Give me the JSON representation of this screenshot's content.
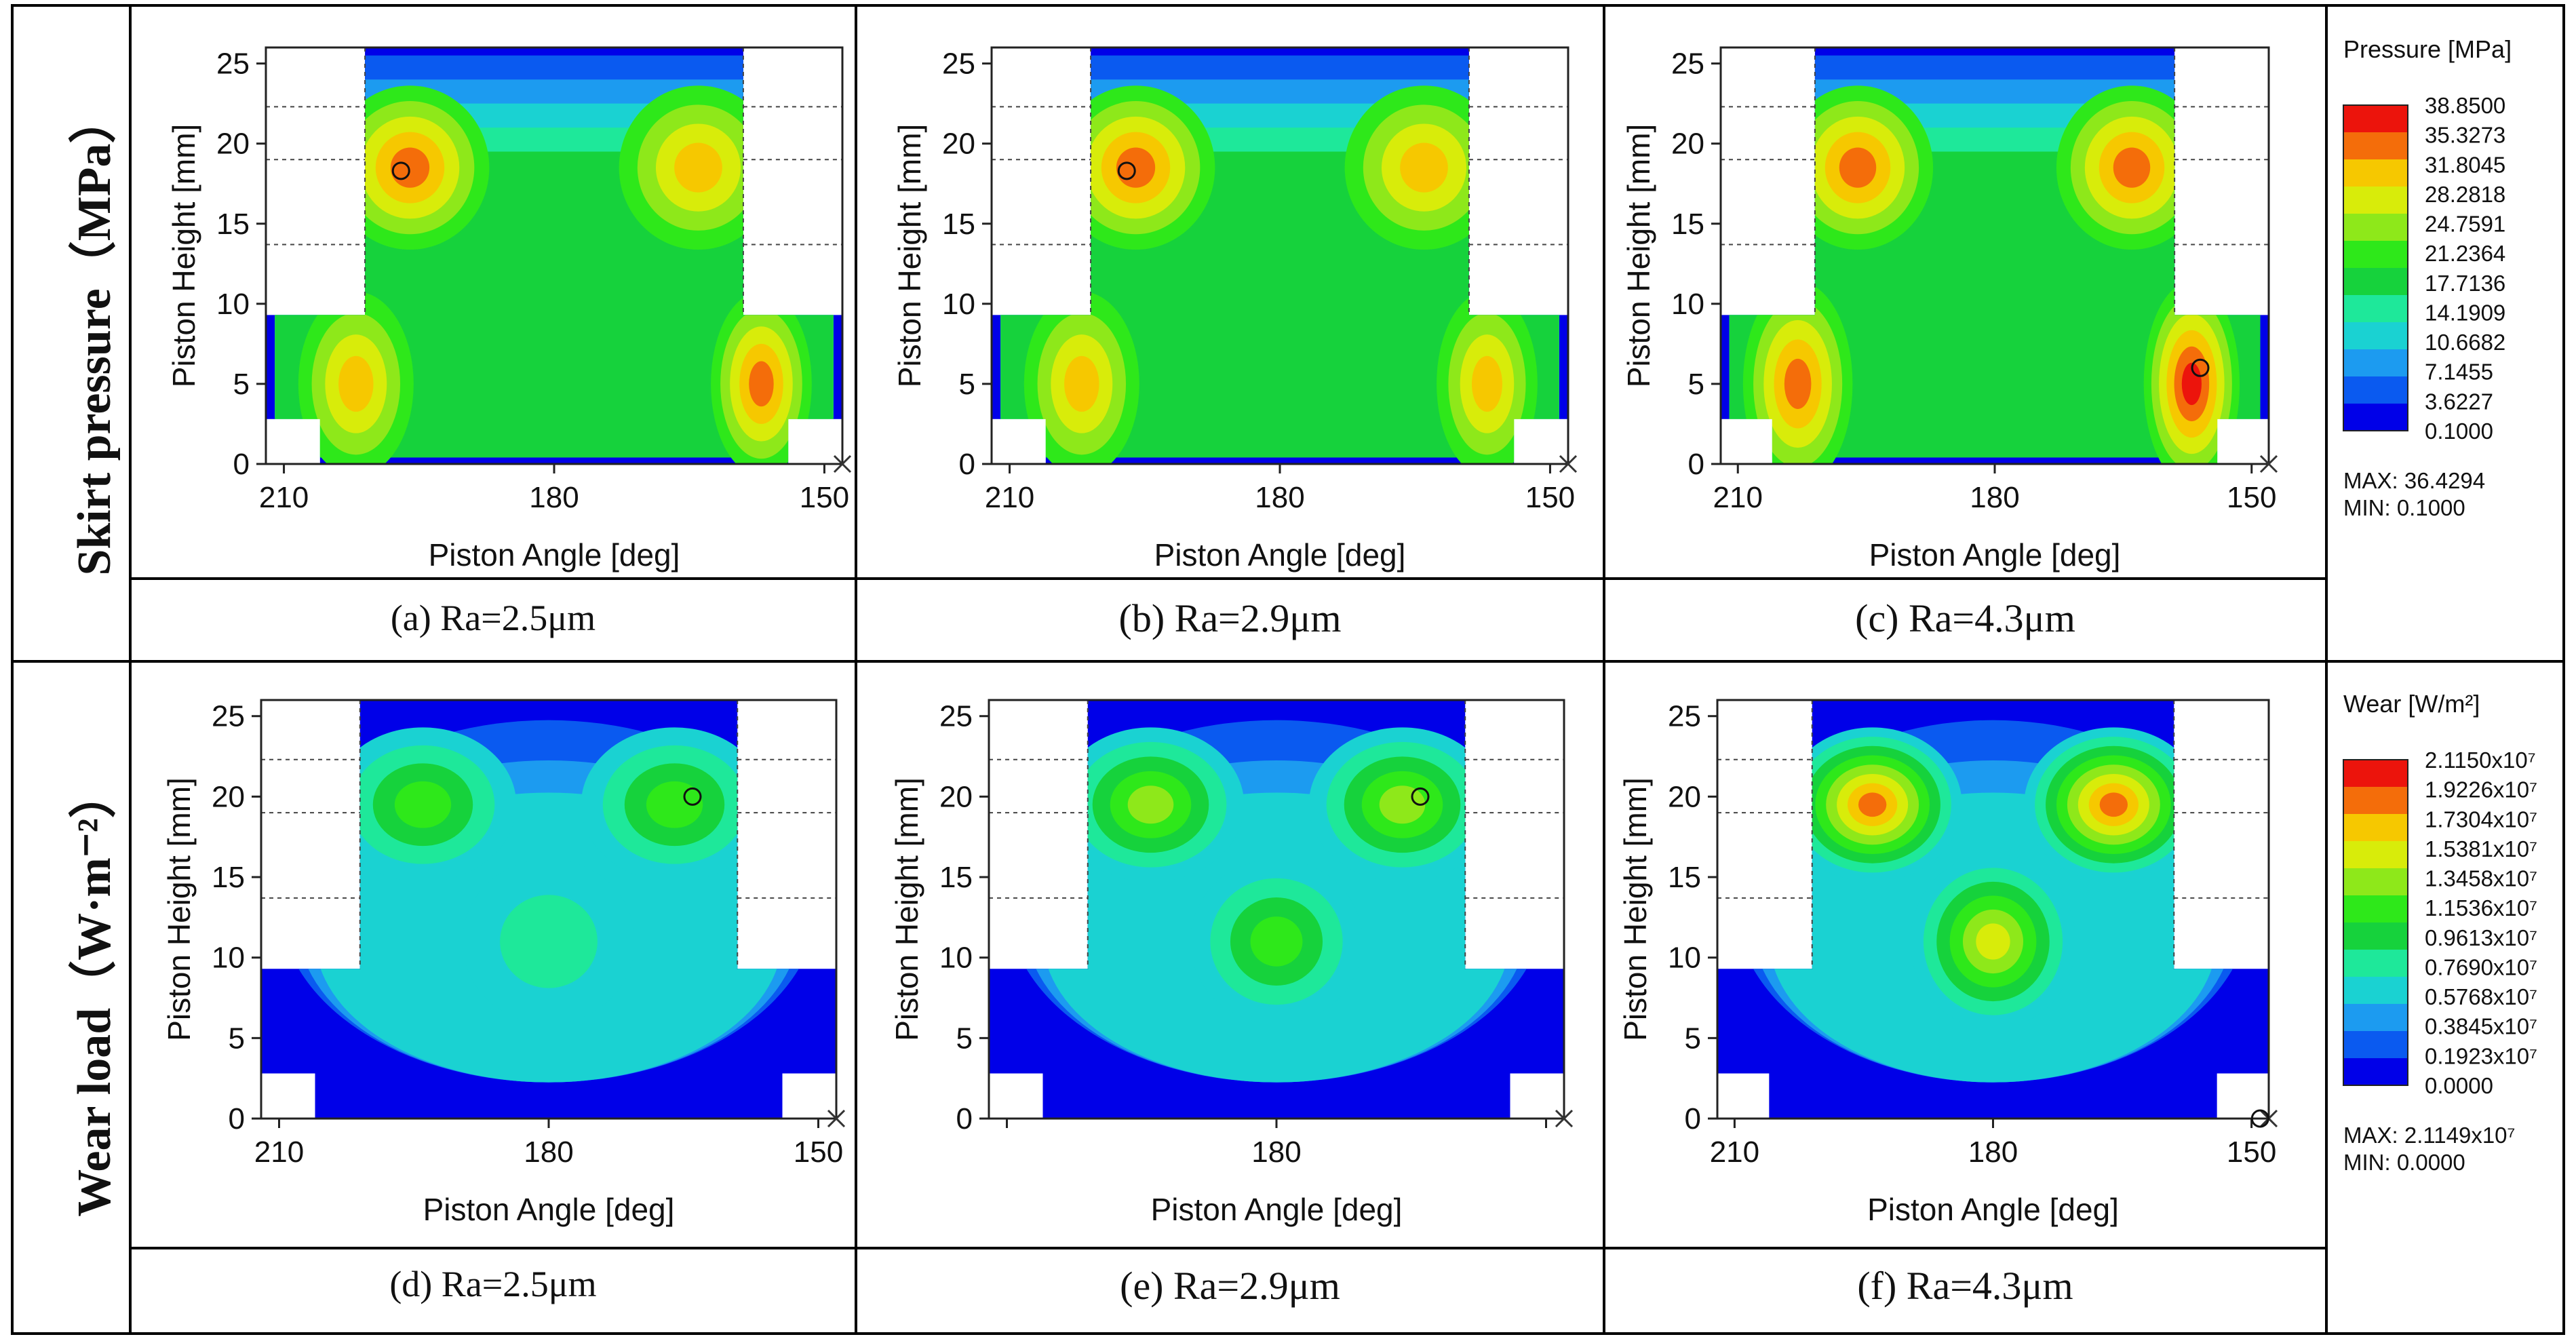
{
  "row_labels": [
    "Skirt pressure（MPa）",
    "Wear load（W·m⁻²）"
  ],
  "captions": [
    "(a)  Ra=2.5μm",
    "(b)  Ra=2.9μm",
    "(c)  Ra=4.3μm",
    "(d)  Ra=2.5μm",
    "(e)  Ra=2.9μm",
    "(f)  Ra=4.3μm"
  ],
  "colors": {
    "pressure_bands": [
      "#0000e8",
      "#0a5af0",
      "#1c9bf0",
      "#1ad2d2",
      "#1ee89a",
      "#16d23c",
      "#2ee81a",
      "#8ee81a",
      "#d8ec0a",
      "#f6c800",
      "#f46d0a",
      "#ec140c"
    ],
    "wear_bands": [
      "#0000e8",
      "#0a5af0",
      "#1c9bf0",
      "#1ad2d2",
      "#1ee89a",
      "#16d23c",
      "#2ee81a",
      "#8ee81a",
      "#d8ec0a",
      "#f6c800",
      "#f46d0a",
      "#ec140c"
    ]
  },
  "legends": {
    "pressure": {
      "title": "Pressure  [MPa]",
      "levels": [
        "38.8500",
        "35.3273",
        "31.8045",
        "28.2818",
        "24.7591",
        "21.2364",
        "17.7136",
        "14.1909",
        "10.6682",
        "7.1455",
        "3.6227",
        "0.1000"
      ],
      "max_text": "MAX: 36.4294",
      "min_text": "MIN:  0.1000"
    },
    "wear": {
      "title": "Wear  [W/m²]",
      "levels": [
        "2.1150x10⁷",
        "1.9226x10⁷",
        "1.7304x10⁷",
        "1.5381x10⁷",
        "1.3458x10⁷",
        "1.1536x10⁷",
        "0.9613x10⁷",
        "0.7690x10⁷",
        "0.5768x10⁷",
        "0.3845x10⁷",
        "0.1923x10⁷",
        "0.0000"
      ],
      "max_text": "MAX: 2.1149x10⁷",
      "min_text": "MIN: 0.0000"
    }
  },
  "chart_data": [
    {
      "type": "heatmap",
      "id": "a",
      "quantity": "pressure",
      "xlabel": "Piston Angle  [deg]",
      "ylabel": "Piston Height  [mm]",
      "xlim": [
        212,
        148
      ],
      "ylim": [
        0,
        26
      ],
      "xticks": [
        "210",
        "180",
        "150"
      ],
      "yticks": [
        "0",
        "5",
        "10",
        "15",
        "20",
        "25"
      ],
      "max_marker": {
        "angle": 197,
        "height": 18.3
      },
      "blobs": [
        {
          "angle": 196,
          "height": 18.5,
          "level": 10.8,
          "ra": 5.5,
          "rh": 3.2
        },
        {
          "angle": 164,
          "height": 18.5,
          "level": 9.8,
          "ra": 5.5,
          "rh": 3.2
        },
        {
          "angle": 202,
          "height": 5,
          "level": 9.0,
          "ra": 4,
          "rh": 3.6
        },
        {
          "angle": 157,
          "height": 5,
          "level": 10.0,
          "ra": 3.5,
          "rh": 3.6
        }
      ]
    },
    {
      "type": "heatmap",
      "id": "b",
      "quantity": "pressure",
      "xlabel": "Piston Angle  [deg]",
      "ylabel": "Piston Height  [mm]",
      "xlim": [
        212,
        148
      ],
      "ylim": [
        0,
        26
      ],
      "xticks": [
        "210",
        "180",
        "150"
      ],
      "yticks": [
        "0",
        "5",
        "10",
        "15",
        "20",
        "25"
      ],
      "max_marker": {
        "angle": 197,
        "height": 18.3
      },
      "blobs": [
        {
          "angle": 196,
          "height": 18.5,
          "level": 10.9,
          "ra": 5.5,
          "rh": 3.2
        },
        {
          "angle": 164,
          "height": 18.5,
          "level": 9.9,
          "ra": 5.5,
          "rh": 3.2
        },
        {
          "angle": 202,
          "height": 5,
          "level": 9.2,
          "ra": 4,
          "rh": 3.6
        },
        {
          "angle": 157,
          "height": 5,
          "level": 9.9,
          "ra": 3.5,
          "rh": 3.6
        }
      ]
    },
    {
      "type": "heatmap",
      "id": "c",
      "quantity": "pressure",
      "xlabel": "Piston Angle  [deg]",
      "ylabel": "Piston Height  [mm]",
      "xlim": [
        212,
        148
      ],
      "ylim": [
        0,
        26
      ],
      "xticks": [
        "210",
        "180",
        "150"
      ],
      "yticks": [
        "0",
        "5",
        "10",
        "15",
        "20",
        "25"
      ],
      "max_marker": {
        "angle": 156,
        "height": 6
      },
      "blobs": [
        {
          "angle": 196,
          "height": 18.5,
          "level": 10.9,
          "ra": 5.5,
          "rh": 3.2
        },
        {
          "angle": 164,
          "height": 18.5,
          "level": 10.2,
          "ra": 5.5,
          "rh": 3.2
        },
        {
          "angle": 203,
          "height": 5,
          "level": 10.6,
          "ra": 4,
          "rh": 4
        },
        {
          "angle": 157,
          "height": 5,
          "level": 11.0,
          "ra": 3.5,
          "rh": 4
        }
      ]
    },
    {
      "type": "heatmap",
      "id": "d",
      "quantity": "wear",
      "xlabel": "Piston Angle  [deg]",
      "ylabel": "Piston Height  [mm]",
      "xlim": [
        212,
        148
      ],
      "ylim": [
        0,
        26
      ],
      "xticks": [
        "210",
        "180",
        "150"
      ],
      "yticks": [
        "0",
        "5",
        "10",
        "15",
        "20",
        "25"
      ],
      "max_marker": {
        "angle": 164,
        "height": 20
      },
      "blobs": [
        {
          "angle": 194,
          "height": 19.5,
          "level": 6.0,
          "ra": 6.5,
          "rh": 3
        },
        {
          "angle": 166,
          "height": 19.5,
          "level": 6.0,
          "ra": 6.5,
          "rh": 3
        },
        {
          "angle": 180,
          "height": 11,
          "level": 4.6,
          "ra": 6,
          "rh": 3.2
        }
      ]
    },
    {
      "type": "heatmap",
      "id": "e",
      "quantity": "wear",
      "xlabel": "Piston Angle  [deg]",
      "ylabel": "Piston Height  [mm]",
      "xlim": [
        212,
        148
      ],
      "ylim": [
        0,
        26
      ],
      "xticks": [
        "",
        "180",
        ""
      ],
      "yticks": [
        "0",
        "5",
        "10",
        "15",
        "20",
        "25"
      ],
      "max_marker": {
        "angle": 164,
        "height": 20
      },
      "blobs": [
        {
          "angle": 194,
          "height": 19.5,
          "level": 7.6,
          "ra": 6.5,
          "rh": 3
        },
        {
          "angle": 166,
          "height": 19.5,
          "level": 7.6,
          "ra": 6.5,
          "rh": 3
        },
        {
          "angle": 180,
          "height": 11,
          "level": 6.0,
          "ra": 6,
          "rh": 3.2
        }
      ]
    },
    {
      "type": "heatmap",
      "id": "f",
      "quantity": "wear",
      "xlabel": "Piston Angle  [deg]",
      "ylabel": "Piston Height  [mm]",
      "xlim": [
        212,
        148
      ],
      "ylim": [
        0,
        26
      ],
      "xticks": [
        "210",
        "180",
        "150"
      ],
      "yticks": [
        "0",
        "5",
        "10",
        "15",
        "20",
        "25"
      ],
      "max_marker": {
        "angle": 149,
        "height": 0
      },
      "blobs": [
        {
          "angle": 194,
          "height": 19.5,
          "level": 10.0,
          "ra": 6.5,
          "rh": 3
        },
        {
          "angle": 166,
          "height": 19.5,
          "level": 10.0,
          "ra": 6.5,
          "rh": 3
        },
        {
          "angle": 180,
          "height": 11,
          "level": 8.4,
          "ra": 6,
          "rh": 3.4
        }
      ]
    }
  ]
}
